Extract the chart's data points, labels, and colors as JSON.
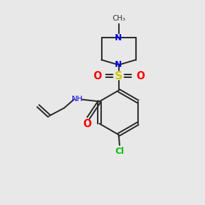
{
  "background_color": "#e8e8e8",
  "bond_color": "#2a2a2a",
  "N_color": "#0000ee",
  "O_color": "#ff0000",
  "S_color": "#cccc00",
  "Cl_color": "#00bb00",
  "font_size": 8.0,
  "figsize": [
    3.0,
    3.0
  ],
  "dpi": 100,
  "xlim": [
    0,
    10
  ],
  "ylim": [
    0,
    10
  ]
}
